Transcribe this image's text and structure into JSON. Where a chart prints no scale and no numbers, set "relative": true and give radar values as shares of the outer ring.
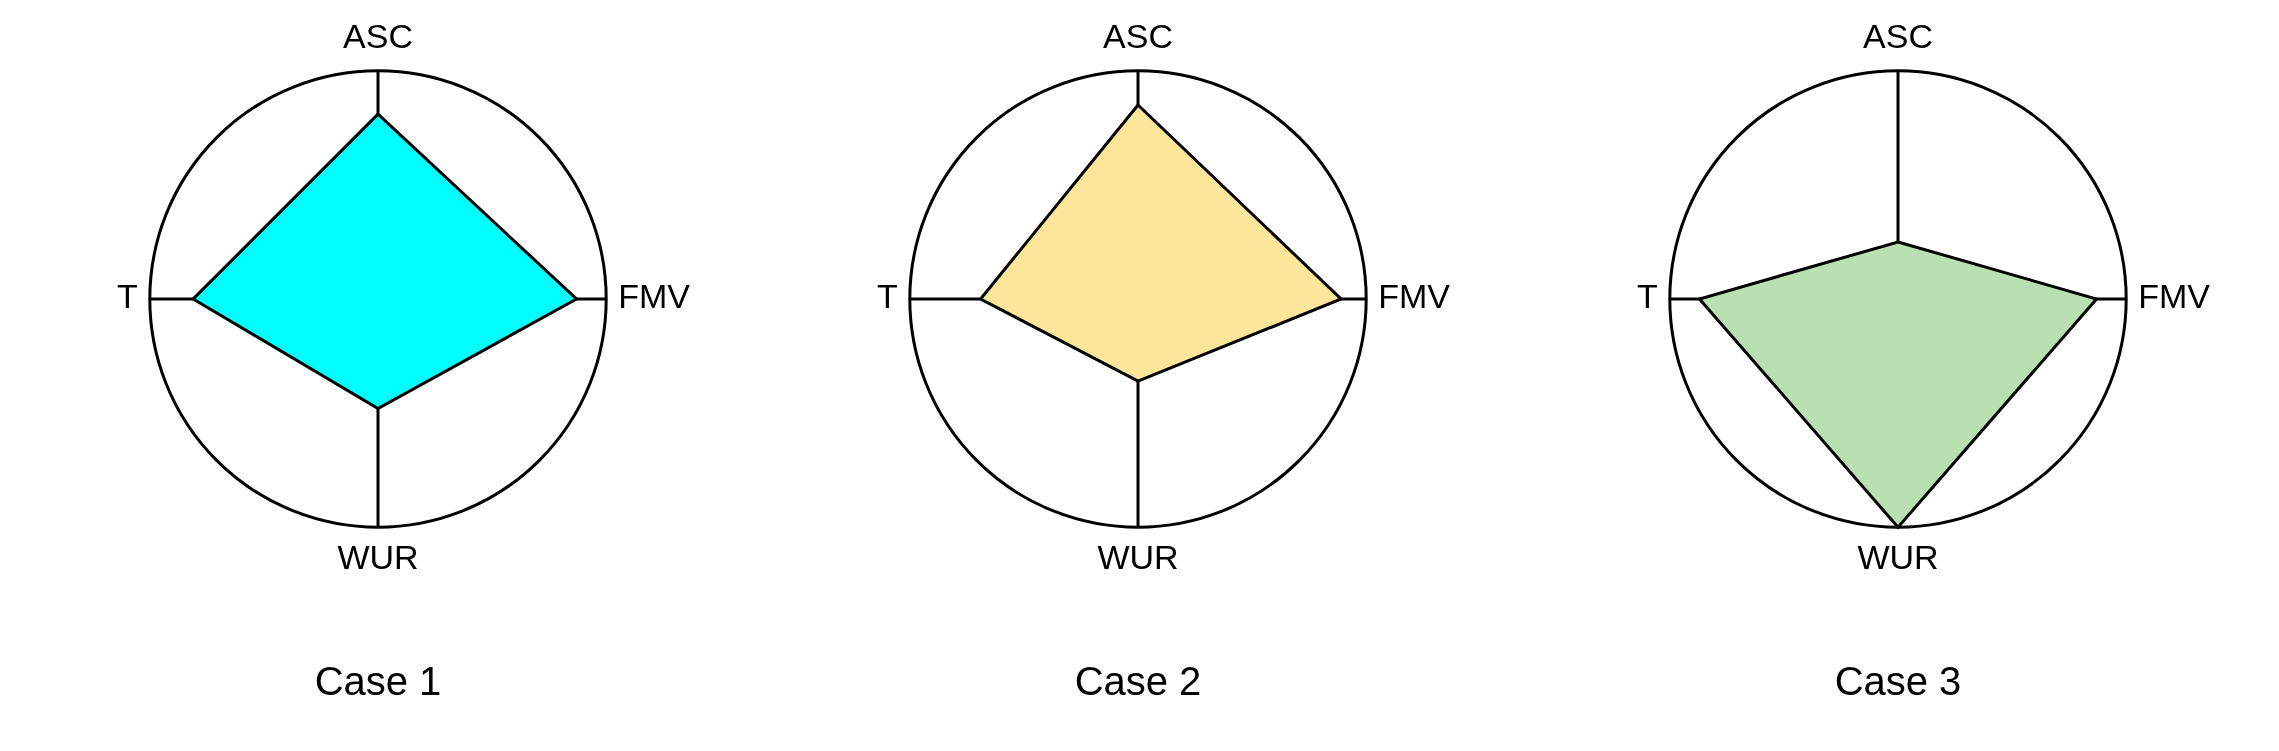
{
  "chart_data": [
    {
      "type": "radar",
      "title": "Case 1",
      "categories": [
        "ASC",
        "FMV",
        "WUR",
        "T"
      ],
      "relative": true,
      "series": [
        {
          "color": "#00ffff",
          "values": [
            0.81,
            0.87,
            0.48,
            0.81
          ]
        }
      ]
    },
    {
      "type": "radar",
      "title": "Case 2",
      "categories": [
        "ASC",
        "FMV",
        "WUR",
        "T"
      ],
      "relative": true,
      "series": [
        {
          "color": "#fde699",
          "values": [
            0.85,
            0.89,
            0.36,
            0.69
          ]
        }
      ]
    },
    {
      "type": "radar",
      "title": "Case 3",
      "categories": [
        "ASC",
        "FMV",
        "WUR",
        "T"
      ],
      "relative": true,
      "series": [
        {
          "color": "#b9e0b0",
          "values": [
            0.25,
            0.87,
            1.0,
            0.87
          ]
        }
      ]
    }
  ]
}
